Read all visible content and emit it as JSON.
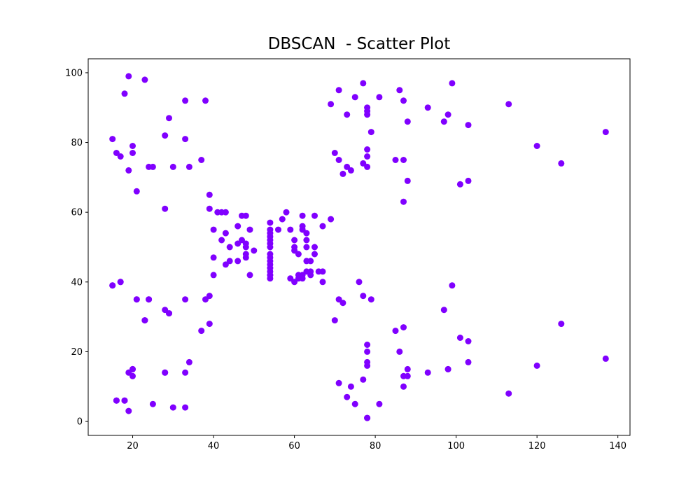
{
  "chart_data": {
    "type": "scatter",
    "title": "DBSCAN  - Scatter Plot",
    "xlabel": "",
    "ylabel": "",
    "xlim": [
      9,
      143
    ],
    "ylim": [
      -4,
      104
    ],
    "xticks": [
      20,
      40,
      60,
      80,
      100,
      120,
      140
    ],
    "yticks": [
      0,
      20,
      40,
      60,
      80,
      100
    ],
    "grid": false,
    "legend": "none",
    "point_color": "#8000ff",
    "x": [
      15,
      16,
      17,
      18,
      19,
      20,
      20,
      21,
      23,
      24,
      25,
      28,
      28,
      29,
      30,
      33,
      33,
      34,
      37,
      38,
      19,
      18,
      23,
      29,
      33,
      15,
      16,
      17,
      20,
      24,
      28,
      28,
      21,
      23,
      24,
      29,
      17,
      21,
      16,
      18,
      19,
      19,
      20,
      20,
      25,
      28,
      30,
      33,
      33,
      34,
      39,
      39,
      40,
      40,
      40,
      41,
      42,
      42,
      43,
      43,
      43,
      44,
      44,
      46,
      46,
      46,
      47,
      47,
      48,
      48,
      48,
      48,
      48,
      49,
      49,
      50,
      54,
      54,
      54,
      54,
      54,
      54,
      54,
      54,
      54,
      54,
      54,
      54,
      54,
      54,
      54,
      54,
      56,
      57,
      58,
      59,
      59,
      60,
      60,
      60,
      60,
      61,
      61,
      61,
      62,
      62,
      62,
      62,
      62,
      63,
      63,
      63,
      63,
      63,
      64,
      64,
      64,
      65,
      65,
      65,
      66,
      67,
      67,
      67,
      69,
      38,
      39,
      39,
      37,
      15,
      69,
      71,
      73,
      75,
      77,
      78,
      78,
      78,
      79,
      81,
      86,
      87,
      88,
      71,
      70,
      72,
      73,
      74,
      77,
      78,
      78,
      78,
      85,
      87,
      87,
      88,
      70,
      71,
      72,
      76,
      77,
      79,
      71,
      73,
      74,
      75,
      77,
      78,
      78,
      78,
      78,
      78,
      78,
      81,
      85,
      86,
      87,
      87,
      87,
      88,
      88,
      93,
      97,
      98,
      99,
      103,
      101,
      103,
      113,
      120,
      126,
      137,
      93,
      97,
      98,
      99,
      101,
      103,
      98,
      103,
      113,
      120,
      126,
      137
    ],
    "y": [
      81,
      77,
      76,
      94,
      99,
      77,
      79,
      66,
      98,
      73,
      73,
      82,
      61,
      87,
      73,
      81,
      92,
      73,
      75,
      92,
      72,
      6,
      29,
      31,
      35,
      39,
      6,
      40,
      15,
      35,
      32,
      14,
      35,
      29,
      35,
      31,
      40,
      35,
      6,
      6,
      14,
      3,
      13,
      15,
      5,
      14,
      4,
      4,
      14,
      17,
      65,
      61,
      42,
      55,
      47,
      60,
      52,
      60,
      45,
      54,
      60,
      46,
      50,
      56,
      51,
      46,
      52,
      59,
      50,
      51,
      48,
      47,
      59,
      55,
      42,
      49,
      57,
      55,
      54,
      53,
      52,
      51,
      50,
      48,
      47,
      46,
      45,
      44,
      42,
      41,
      42,
      43,
      55,
      58,
      60,
      55,
      41,
      52,
      50,
      49,
      40,
      48,
      41,
      42,
      59,
      56,
      55,
      42,
      41,
      54,
      52,
      50,
      46,
      43,
      46,
      42,
      43,
      59,
      50,
      48,
      43,
      56,
      40,
      43,
      58,
      35,
      36,
      28,
      26,
      39,
      91,
      95,
      88,
      93,
      97,
      90,
      89,
      88,
      83,
      93,
      95,
      92,
      86,
      75,
      77,
      71,
      73,
      72,
      74,
      78,
      76,
      73,
      75,
      75,
      63,
      69,
      29,
      35,
      34,
      40,
      36,
      35,
      11,
      7,
      10,
      5,
      12,
      20,
      22,
      17,
      16,
      1,
      1,
      5,
      26,
      20,
      27,
      13,
      10,
      13,
      15,
      90,
      86,
      88,
      97,
      85,
      68,
      69,
      91,
      79,
      74,
      83,
      14,
      32,
      15,
      39,
      24,
      23,
      15,
      17,
      8,
      16,
      28,
      18
    ]
  }
}
